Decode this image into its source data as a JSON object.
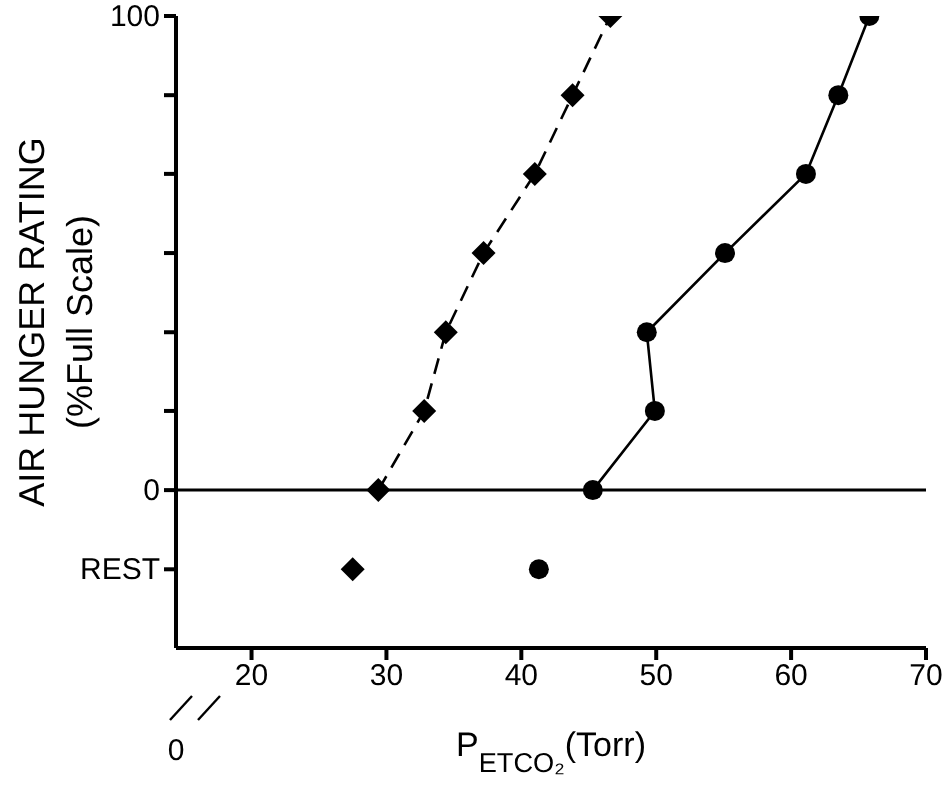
{
  "chart_data": {
    "type": "line",
    "xlabel": "P$_{ETCO₂}$(Torr)",
    "ylabel": "AIR HUNGER RATING\n(%Full Scale)",
    "xlim": [
      14.4,
      70
    ],
    "xticks": [
      20,
      30,
      40,
      50,
      60,
      70
    ],
    "annotations": [
      "0"
    ],
    "ylim": [
      -33.3,
      100
    ],
    "yticks": [
      {
        "value": -16.7,
        "label": "REST"
      },
      0,
      {
        "value": 16.7,
        "label": null
      },
      {
        "value": 33.3,
        "label": null
      },
      {
        "value": 50,
        "label": null
      },
      {
        "value": 66.7,
        "label": null
      },
      {
        "value": 83.3,
        "label": null
      },
      100
    ],
    "grid": false,
    "legend": false,
    "ref_lines": [
      {
        "axis": "y",
        "value": 0,
        "color": "#000000"
      }
    ],
    "series": [
      {
        "type": "line",
        "color": "#000000",
        "marker": "diamond",
        "line_style": "dashed",
        "x": [
          29.4,
          32.8,
          34.4,
          37.2,
          41.0,
          43.8,
          46.6
        ],
        "values": [
          0,
          16.7,
          33.3,
          50,
          66.7,
          83.3,
          100
        ]
      },
      {
        "type": "line",
        "color": "#000000",
        "marker": "circle",
        "line_style": "solid",
        "x": [
          45.3,
          49.9,
          49.3,
          55.1,
          61.1,
          63.5,
          65.8
        ],
        "values": [
          0,
          16.7,
          33.3,
          50,
          66.7,
          83.3,
          100
        ]
      },
      {
        "type": "scatter",
        "color": "#000000",
        "marker": "diamond",
        "x": [
          27.5
        ],
        "values": [
          -16.7
        ]
      },
      {
        "type": "scatter",
        "color": "#000000",
        "marker": "circle",
        "x": [
          41.3
        ],
        "values": [
          -16.7
        ]
      }
    ]
  }
}
